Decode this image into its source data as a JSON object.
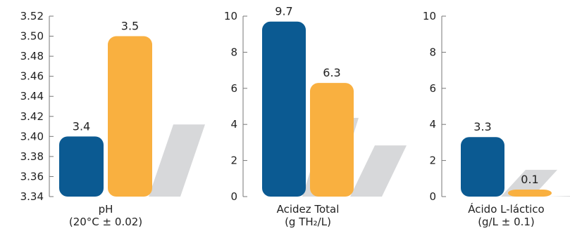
{
  "colors": {
    "primary": "#0b5a92",
    "secondary": "#f9b040",
    "shadow": "#d3d4d6",
    "axis": "#777777"
  },
  "chart_data": [
    {
      "type": "bar",
      "title": "",
      "xlabel": "",
      "ylabel": "",
      "categories": [
        "pH",
        "(20°C ± 0.02)"
      ],
      "label_lines": [
        "pH",
        "(20°C ± 0.02)"
      ],
      "values": [
        3.4,
        3.5
      ],
      "data_labels": [
        "3.4",
        "3.5"
      ],
      "ylim": [
        3.34,
        3.52
      ],
      "yticks": [
        "3.52",
        "3.50",
        "3.48",
        "3.46",
        "3.44",
        "3.42",
        "3.40",
        "3.38",
        "3.36",
        "3.34"
      ],
      "ytick_values": [
        3.52,
        3.5,
        3.48,
        3.46,
        3.44,
        3.42,
        3.4,
        3.38,
        3.36,
        3.34
      ],
      "grid": false
    },
    {
      "type": "bar",
      "title": "",
      "xlabel": "",
      "ylabel": "",
      "label_lines": [
        "Acidez Total",
        "(g TH₂/L)"
      ],
      "values": [
        9.7,
        6.3
      ],
      "data_labels": [
        "9.7",
        "6.3"
      ],
      "ylim": [
        0,
        10
      ],
      "yticks": [
        "10",
        "8",
        "6",
        "4",
        "2",
        "0"
      ],
      "ytick_values": [
        10,
        8,
        6,
        4,
        2,
        0
      ],
      "grid": false
    },
    {
      "type": "bar",
      "title": "",
      "xlabel": "",
      "ylabel": "",
      "label_lines": [
        "Ácido L-láctico",
        "(g/L ± 0.1)"
      ],
      "values": [
        3.3,
        0.1
      ],
      "data_labels": [
        "3.3",
        "0.1"
      ],
      "ylim": [
        0,
        10
      ],
      "yticks": [
        "10",
        "8",
        "6",
        "4",
        "2",
        "0"
      ],
      "ytick_values": [
        10,
        8,
        6,
        4,
        2,
        0
      ],
      "grid": false
    }
  ]
}
